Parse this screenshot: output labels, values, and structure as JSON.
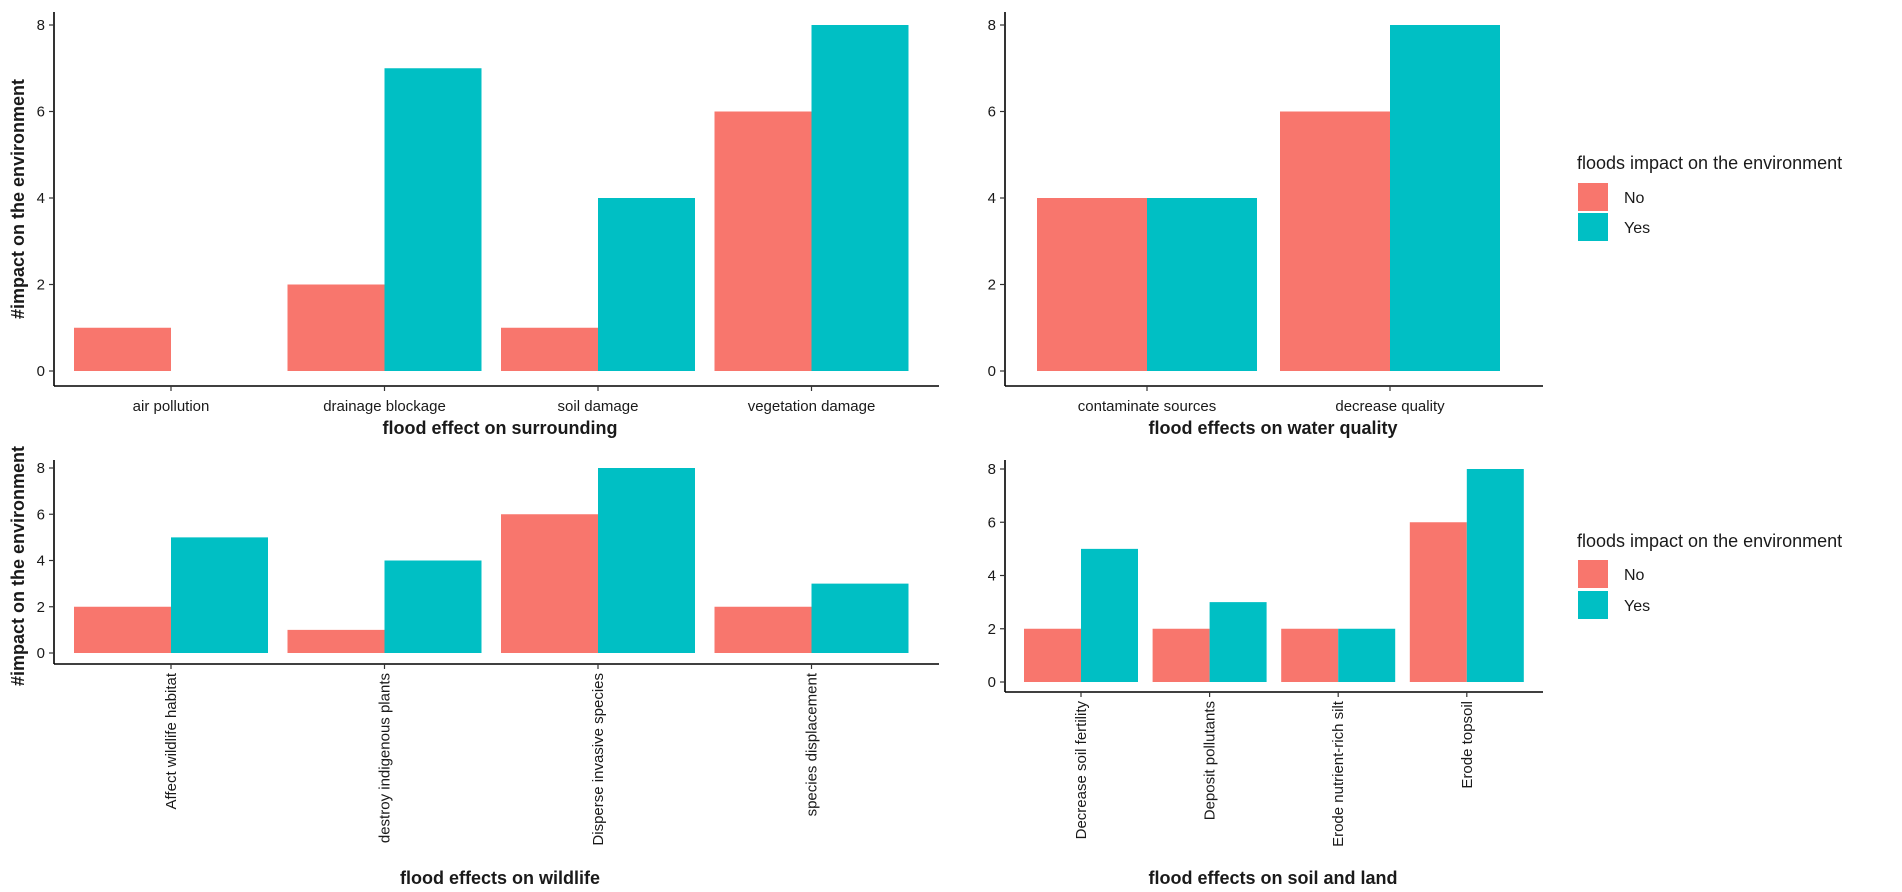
{
  "legend": {
    "title": "floods impact on the environment",
    "entries": [
      {
        "label": "No",
        "color": "#F8766D"
      },
      {
        "label": "Yes",
        "color": "#00BFC4"
      }
    ]
  },
  "ylabel": "#impact on the environment",
  "chart_data": [
    {
      "type": "bar",
      "title": "",
      "xlabel": "flood effect on surrounding",
      "ylabel": "#impact on the environment",
      "categories": [
        "air pollution",
        "drainage blockage",
        "soil damage",
        "vegetation damage"
      ],
      "series": [
        {
          "name": "No",
          "color": "#F8766D",
          "values": [
            1,
            2,
            1,
            6
          ]
        },
        {
          "name": "Yes",
          "color": "#00BFC4",
          "values": [
            0,
            7,
            4,
            8
          ]
        }
      ],
      "yticks": [
        0,
        2,
        4,
        6,
        8
      ],
      "ylim": [
        0,
        8.4
      ],
      "tick_rotation": 0,
      "grid": false
    },
    {
      "type": "bar",
      "title": "",
      "xlabel": "flood effects on water quality",
      "ylabel": "",
      "categories": [
        "contaminate sources",
        "decrease quality"
      ],
      "series": [
        {
          "name": "No",
          "color": "#F8766D",
          "values": [
            4,
            6
          ]
        },
        {
          "name": "Yes",
          "color": "#00BFC4",
          "values": [
            4,
            8
          ]
        }
      ],
      "yticks": [
        0,
        2,
        4,
        6,
        8
      ],
      "ylim": [
        0,
        8.4
      ],
      "tick_rotation": 0,
      "grid": false
    },
    {
      "type": "bar",
      "title": "",
      "xlabel": "flood effects on wildlife",
      "ylabel": "#impact on the environment",
      "categories": [
        "Affect wildlife habitat",
        "destroy indigenous plants",
        "Disperse invasive species",
        "species displacement"
      ],
      "series": [
        {
          "name": "No",
          "color": "#F8766D",
          "values": [
            2,
            1,
            6,
            2
          ]
        },
        {
          "name": "Yes",
          "color": "#00BFC4",
          "values": [
            5,
            4,
            8,
            3
          ]
        }
      ],
      "yticks": [
        0,
        2,
        4,
        6,
        8
      ],
      "ylim": [
        0,
        8.4
      ],
      "tick_rotation": -90,
      "grid": false
    },
    {
      "type": "bar",
      "title": "",
      "xlabel": "flood effects on soil and land",
      "ylabel": "",
      "categories": [
        "Decrease soil fertility",
        "Deposit pollutants",
        "Erode nutrient-rich silt",
        "Erode topsoil"
      ],
      "series": [
        {
          "name": "No",
          "color": "#F8766D",
          "values": [
            2,
            2,
            2,
            6
          ]
        },
        {
          "name": "Yes",
          "color": "#00BFC4",
          "values": [
            5,
            3,
            2,
            8
          ]
        }
      ],
      "yticks": [
        0,
        2,
        4,
        6,
        8
      ],
      "ylim": [
        0,
        8.4
      ],
      "tick_rotation": -90,
      "grid": false
    }
  ]
}
